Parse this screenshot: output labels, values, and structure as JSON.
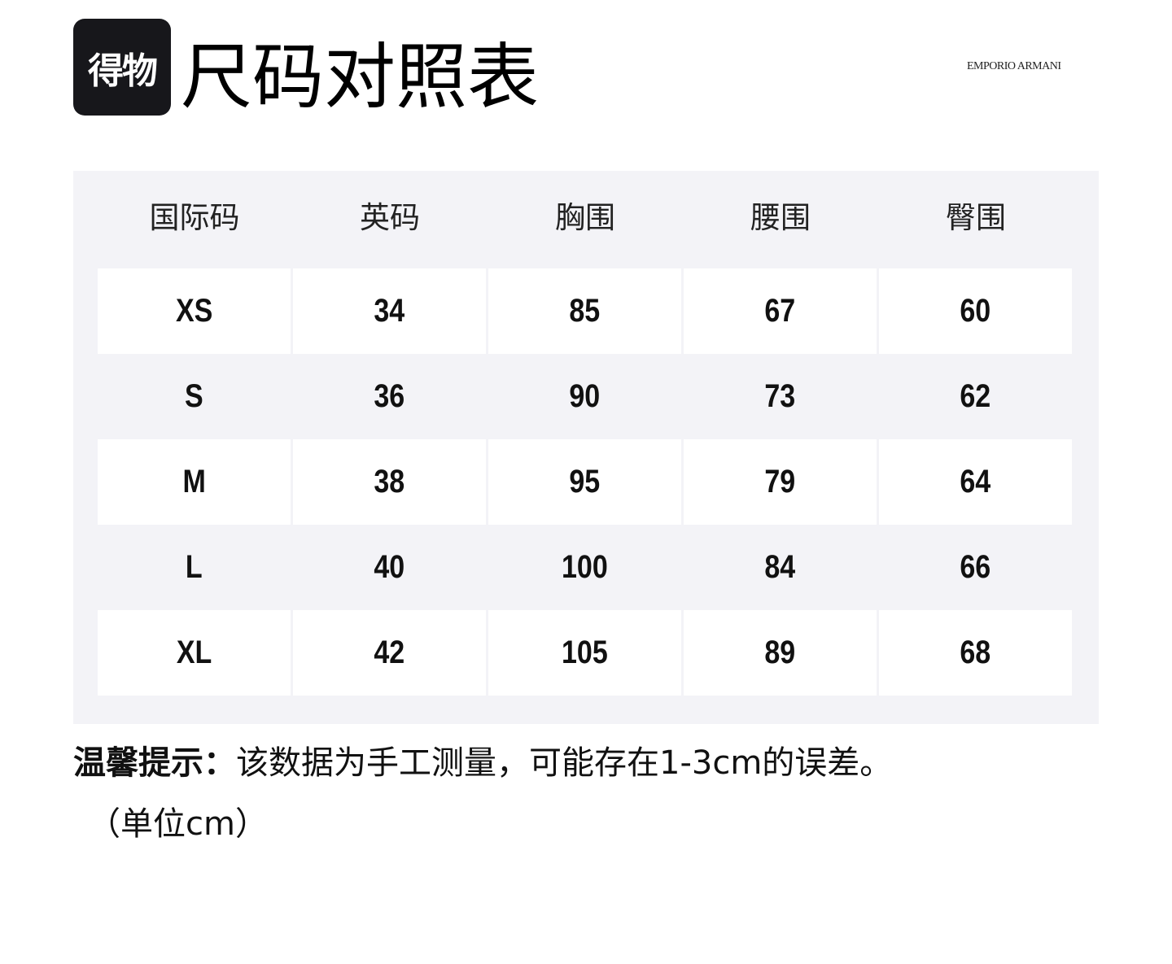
{
  "logo_text": "得物",
  "title": "尺码对照表",
  "brand": "EMPORIO ARMANI",
  "table": {
    "headers": [
      "国际码",
      "英码",
      "胸围",
      "腰围",
      "臀围"
    ],
    "rows": [
      [
        "XS",
        "34",
        "85",
        "67",
        "60"
      ],
      [
        "S",
        "36",
        "90",
        "73",
        "62"
      ],
      [
        "M",
        "38",
        "95",
        "79",
        "64"
      ],
      [
        "L",
        "40",
        "100",
        "84",
        "66"
      ],
      [
        "XL",
        "42",
        "105",
        "89",
        "68"
      ]
    ]
  },
  "note": {
    "label": "温馨提示：",
    "text": "该数据为手工测量，可能存在1-3cm的误差。",
    "unit": "（单位cm）"
  },
  "colors": {
    "panel": "#f3f3f7",
    "logo_bg": "#17171b"
  }
}
